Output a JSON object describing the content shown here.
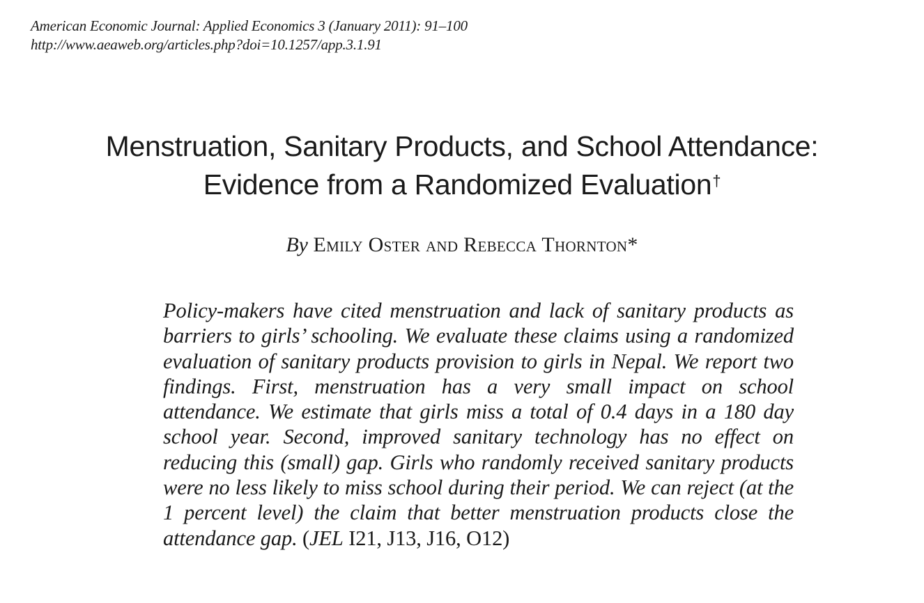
{
  "header": {
    "journal_line": "American Economic Journal: Applied Economics 3 (January 2011): 91–100",
    "doi_url": "http://www.aeaweb.org/articles.php?doi=10.1257/app.3.1.91"
  },
  "title": {
    "line1": "Menstruation, Sanitary Products, and School Attendance:",
    "line2": "Evidence from a Randomized Evaluation",
    "footnote_mark": "†"
  },
  "byline": {
    "by": "By",
    "authors": "Emily Oster and Rebecca Thornton*"
  },
  "abstract": {
    "text": "Policy-makers have cited menstruation and lack of sanitary products as barriers to girls’ schooling. We evaluate these claims using a randomized evaluation of sanitary products provision to girls in Nepal. We report two findings. First, menstruation has a very small impact on school attendance. We estimate that girls miss a total of 0.4 days in a 180 day school year. Second, improved sanitary technology has no effect on reducing this (small) gap. Girls who randomly received sanitary products were no less likely to miss school during their period. We can reject (at the 1 percent level) the claim that better menstruation products close the attendance gap.",
    "jel_open": " (",
    "jel_label": "JEL",
    "jel_codes": " I21, J13, J16, O12)"
  }
}
